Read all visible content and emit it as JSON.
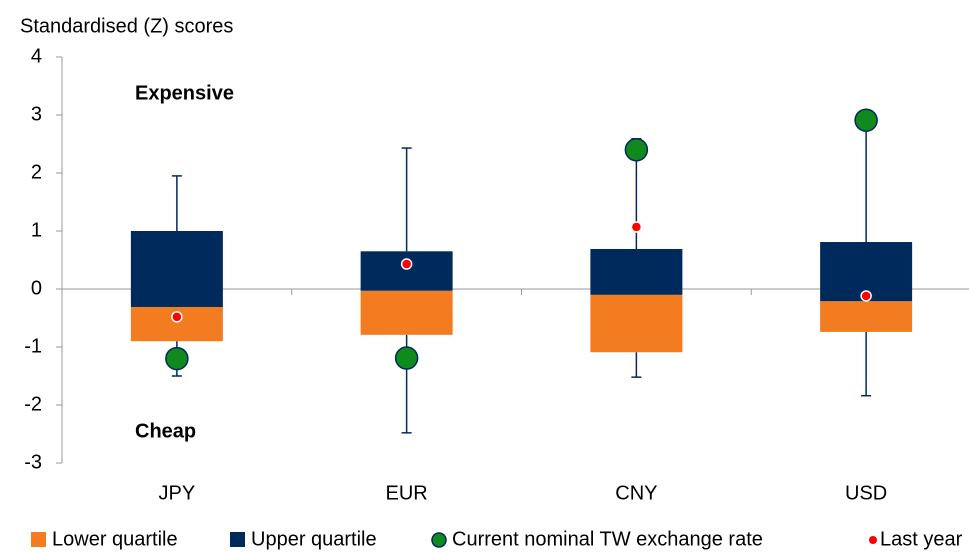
{
  "chart_data": {
    "type": "box",
    "subtitle": "Standardised (Z) scores",
    "annotations": [
      "Expensive",
      "Cheap"
    ],
    "categories": [
      "JPY",
      "EUR",
      "CNY",
      "USD"
    ],
    "min": [
      -1.5,
      -2.48,
      -1.52,
      -1.84
    ],
    "q1": [
      -0.9,
      -0.79,
      -1.09,
      -0.74
    ],
    "median": [
      -0.31,
      -0.03,
      -0.1,
      -0.21
    ],
    "q3": [
      1.0,
      0.65,
      0.69,
      0.81
    ],
    "max": [
      1.95,
      2.43,
      2.59,
      2.91
    ],
    "series": [
      {
        "name": "Lower quartile",
        "color": "#f47c20"
      },
      {
        "name": "Upper quartile",
        "color": "#002a5c"
      },
      {
        "name": "Current nominal TW exchange rate",
        "color": "#108a1c",
        "values": [
          -1.2,
          -1.19,
          2.4,
          2.91
        ]
      },
      {
        "name": "Last year",
        "color": "#ff0000",
        "values": [
          -0.48,
          0.43,
          1.07,
          -0.12
        ]
      }
    ],
    "ylim": [
      -3,
      4
    ],
    "yticks": [
      -3,
      -2,
      -1,
      0,
      1,
      2,
      3,
      4
    ]
  }
}
